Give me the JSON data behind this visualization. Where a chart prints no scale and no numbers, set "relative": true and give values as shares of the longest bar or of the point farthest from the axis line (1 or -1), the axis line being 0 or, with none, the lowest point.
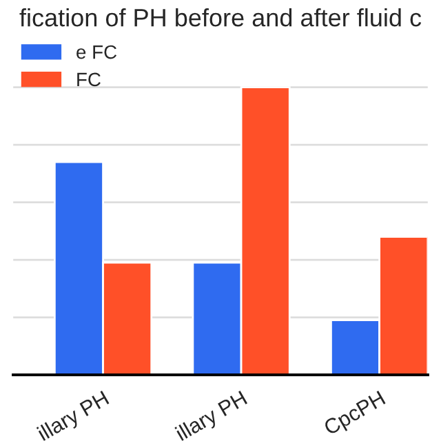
{
  "chart_data": {
    "type": "bar",
    "title": "fication of PH before and after fluid c",
    "categories": [
      "illary PH",
      "illary PH",
      "CpcPH"
    ],
    "relative": true,
    "grid": "y",
    "legend": "top left",
    "series": [
      {
        "name": "e FC",
        "color": "#2f6bf0",
        "values": [
          0.74,
          0.39,
          0.19
        ]
      },
      {
        "name": "FC",
        "color": "#ff5028",
        "values": [
          0.39,
          1,
          0.48
        ]
      }
    ]
  }
}
